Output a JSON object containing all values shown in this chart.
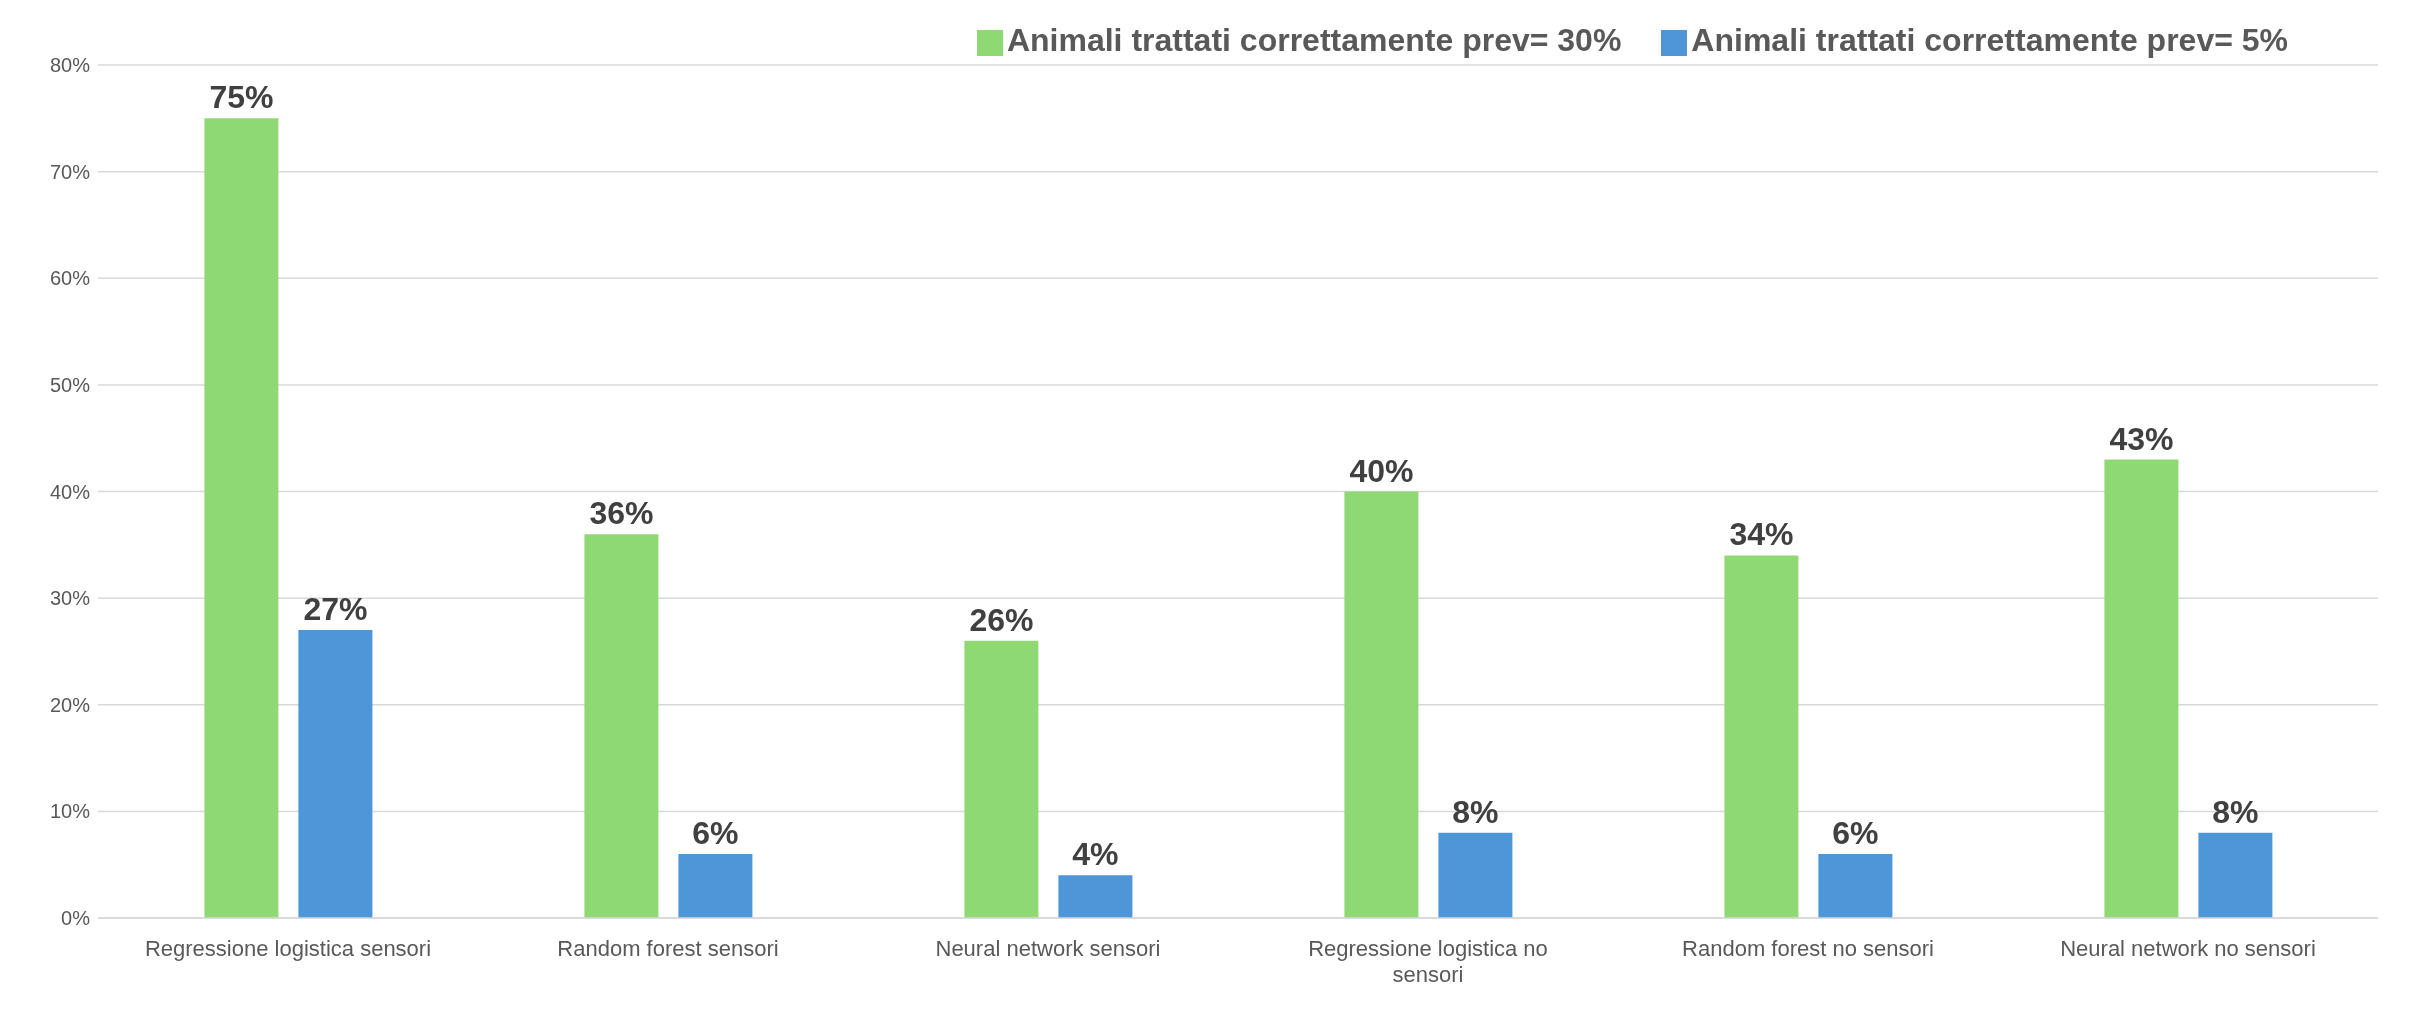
{
  "chart_data": {
    "type": "bar",
    "categories": [
      "Regressione logistica sensori",
      "Random forest sensori",
      "Neural network sensori",
      "Regressione logistica no sensori",
      "Random forest no sensori",
      "Neural network no sensori"
    ],
    "series": [
      {
        "name": "Animali trattati correttamente prev= 30%",
        "color": "#8fd974",
        "values": [
          75,
          36,
          26,
          40,
          34,
          43
        ],
        "value_labels": [
          "75%",
          "36%",
          "26%",
          "40%",
          "34%",
          "43%"
        ]
      },
      {
        "name": "Animali trattati correttamente prev= 5%",
        "color": "#4e96d8",
        "values": [
          27,
          6,
          4,
          8,
          6,
          8
        ],
        "value_labels": [
          "27%",
          "6%",
          "4%",
          "8%",
          "6%",
          "8%"
        ]
      }
    ],
    "ylim": [
      0,
      80
    ],
    "yticks": [
      {
        "value": 0,
        "label": "0%"
      },
      {
        "value": 10,
        "label": "10%"
      },
      {
        "value": 20,
        "label": "20%"
      },
      {
        "value": 30,
        "label": "30%"
      },
      {
        "value": 40,
        "label": "40%"
      },
      {
        "value": 50,
        "label": "50%"
      },
      {
        "value": 60,
        "label": "60%"
      },
      {
        "value": 70,
        "label": "70%"
      },
      {
        "value": 80,
        "label": "80%"
      }
    ],
    "grid": "y",
    "legend": "top right"
  }
}
